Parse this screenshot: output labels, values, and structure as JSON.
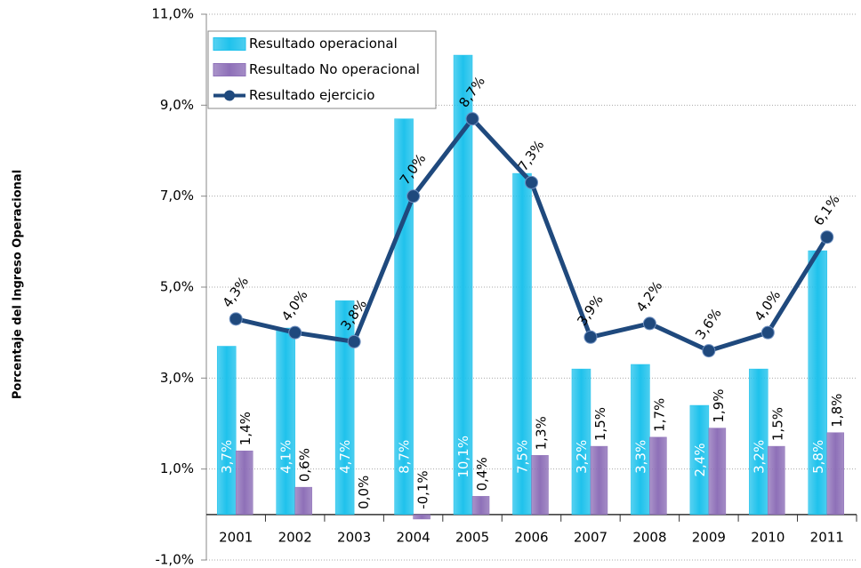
{
  "chart_data": {
    "type": "bar",
    "ylabel": "Porcentaje del Ingreso Operacional",
    "categories": [
      "2001",
      "2002",
      "2003",
      "2004",
      "2005",
      "2006",
      "2007",
      "2008",
      "2009",
      "2010",
      "2011"
    ],
    "series": [
      {
        "name": "Resultado operacional",
        "type": "bar",
        "color": "#1fc2ec",
        "values": [
          3.7,
          4.1,
          4.7,
          8.7,
          10.1,
          7.5,
          3.2,
          3.3,
          2.4,
          3.2,
          5.8
        ],
        "value_labels": [
          "3,7%",
          "4,1%",
          "4,7%",
          "8,7%",
          "10,1%",
          "7,5%",
          "3,2%",
          "3,3%",
          "2,4%",
          "3,2%",
          "5,8%"
        ]
      },
      {
        "name": "Resultado No operacional",
        "type": "bar",
        "color": "#8e70b8",
        "values": [
          1.4,
          0.6,
          0.0,
          -0.1,
          0.4,
          1.3,
          1.5,
          1.7,
          1.9,
          1.5,
          1.8
        ],
        "value_labels": [
          "1,4%",
          "0,6%",
          "0,0%",
          "-0,1%",
          "0,4%",
          "1,3%",
          "1,5%",
          "1,7%",
          "1,9%",
          "1,5%",
          "1,8%"
        ]
      },
      {
        "name": "Resultado ejercicio",
        "type": "line",
        "color": "#1f497d",
        "values": [
          4.3,
          4.0,
          3.8,
          7.0,
          8.7,
          7.3,
          3.9,
          4.2,
          3.6,
          4.0,
          6.1
        ],
        "value_labels": [
          "4,3%",
          "4,0%",
          "3,8%",
          "7,0%",
          "8,7%",
          "7,3%",
          "3,9%",
          "4,2%",
          "3,6%",
          "4,0%",
          "6,1%"
        ]
      }
    ],
    "ylim": [
      -1,
      11
    ],
    "yticks": [
      {
        "value": -1,
        "label": "-1,0%"
      },
      {
        "value": 1,
        "label": "1,0%"
      },
      {
        "value": 3,
        "label": "3,0%"
      },
      {
        "value": 5,
        "label": "5,0%"
      },
      {
        "value": 7,
        "label": "7,0%"
      },
      {
        "value": 9,
        "label": "9,0%"
      },
      {
        "value": 11,
        "label": "11,0%"
      }
    ],
    "grid": true
  }
}
